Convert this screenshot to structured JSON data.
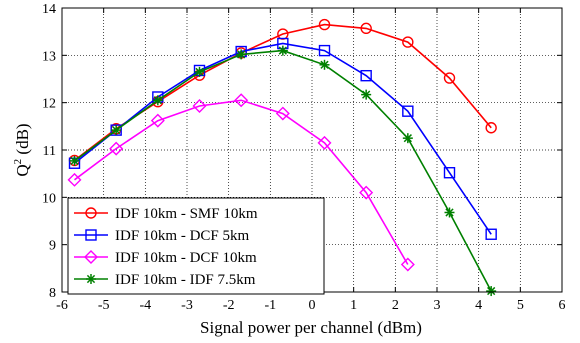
{
  "chart_data": {
    "type": "line",
    "title": "",
    "xlabel": "Signal power per channel (dBm)",
    "ylabel_main": "Q",
    "ylabel_sup": "2",
    "ylabel_unit": " (dB)",
    "xlim": [
      -6,
      6
    ],
    "ylim": [
      8,
      14
    ],
    "xticks": [
      "-6",
      "-5",
      "-4",
      "-3",
      "-2",
      "-1",
      "0",
      "1",
      "2",
      "3",
      "4",
      "5",
      "6"
    ],
    "yticks": [
      "8",
      "9",
      "10",
      "11",
      "12",
      "13",
      "14"
    ],
    "grid": true,
    "legend_position": "bottom-left",
    "series": [
      {
        "name": "IDF 10km - SMF 10km",
        "color": "#ff0000",
        "marker": "circle",
        "x": [
          -5.7,
          -4.7,
          -3.7,
          -2.7,
          -1.7,
          -0.7,
          0.3,
          1.3,
          2.3,
          3.3,
          4.3
        ],
        "y": [
          10.78,
          11.45,
          12.02,
          12.58,
          13.05,
          13.45,
          13.65,
          13.57,
          13.28,
          12.52,
          11.47
        ]
      },
      {
        "name": "IDF 10km - DCF 5km",
        "color": "#0000ff",
        "marker": "square",
        "x": [
          -5.7,
          -4.7,
          -3.7,
          -2.7,
          -1.7,
          -0.7,
          0.3,
          1.3,
          2.3,
          3.3,
          4.3
        ],
        "y": [
          10.72,
          11.42,
          12.12,
          12.68,
          13.08,
          13.25,
          13.1,
          12.57,
          11.82,
          10.52,
          9.22
        ]
      },
      {
        "name": "IDF 10km - DCF 10km",
        "color": "#ff00ff",
        "marker": "diamond",
        "x": [
          -5.7,
          -4.7,
          -3.7,
          -2.7,
          -1.7,
          -0.7,
          0.3,
          1.3,
          2.3
        ],
        "y": [
          10.37,
          11.03,
          11.62,
          11.93,
          12.05,
          11.77,
          11.15,
          10.1,
          8.58
        ]
      },
      {
        "name": "IDF 10km - IDF 7.5km",
        "color": "#008000",
        "marker": "star",
        "x": [
          -5.7,
          -4.7,
          -3.7,
          -2.7,
          -1.7,
          -0.7,
          0.3,
          1.3,
          2.3,
          3.3,
          4.3
        ],
        "y": [
          10.77,
          11.42,
          12.05,
          12.65,
          13.02,
          13.1,
          12.8,
          12.17,
          11.25,
          9.68,
          8.02
        ]
      }
    ]
  }
}
